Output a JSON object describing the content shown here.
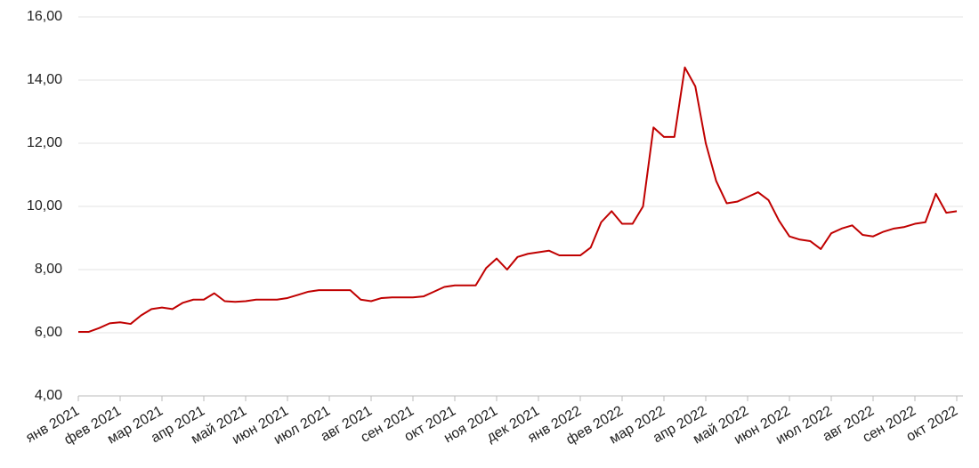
{
  "chart_data": {
    "type": "line",
    "categories": [
      "янв 2021",
      null,
      null,
      null,
      "фев 2021",
      null,
      null,
      null,
      "мар 2021",
      null,
      null,
      null,
      "апр 2021",
      null,
      null,
      null,
      "май 2021",
      null,
      null,
      null,
      "июн 2021",
      null,
      null,
      null,
      "июл 2021",
      null,
      null,
      null,
      "авг 2021",
      null,
      null,
      null,
      "сен 2021",
      null,
      null,
      null,
      "окт 2021",
      null,
      null,
      null,
      "ноя 2021",
      null,
      null,
      null,
      "дек 2021",
      null,
      null,
      null,
      "янв 2022",
      null,
      null,
      null,
      "фев 2022",
      null,
      null,
      null,
      "мар 2022",
      null,
      null,
      null,
      "апр 2022",
      null,
      null,
      null,
      "май 2022",
      null,
      null,
      null,
      "июн 2022",
      null,
      null,
      null,
      "июл 2022",
      null,
      null,
      null,
      "авг 2022",
      null,
      null,
      null,
      "сен 2022",
      null,
      null,
      null,
      "окт 2022"
    ],
    "values": [
      6.03,
      6.03,
      6.15,
      6.3,
      6.33,
      6.28,
      6.55,
      6.75,
      6.8,
      6.75,
      6.95,
      7.05,
      7.05,
      7.25,
      7.0,
      6.98,
      7.0,
      7.05,
      7.05,
      7.05,
      7.1,
      7.2,
      7.3,
      7.35,
      7.35,
      7.35,
      7.35,
      7.05,
      7.0,
      7.1,
      7.12,
      7.12,
      7.12,
      7.15,
      7.3,
      7.45,
      7.5,
      7.5,
      7.5,
      8.05,
      8.35,
      8.0,
      8.4,
      8.5,
      8.55,
      8.6,
      8.45,
      8.45,
      8.45,
      8.7,
      9.5,
      9.85,
      9.45,
      9.45,
      10.0,
      12.5,
      12.2,
      12.2,
      14.4,
      13.8,
      12.0,
      10.8,
      10.1,
      10.15,
      10.3,
      10.45,
      10.2,
      9.55,
      9.05,
      8.95,
      8.9,
      8.65,
      9.15,
      9.3,
      9.4,
      9.1,
      9.05,
      9.2,
      9.3,
      9.35,
      9.45,
      9.5,
      10.4,
      9.8,
      9.85
    ],
    "color": "#c00000",
    "ylim": [
      4,
      16
    ],
    "yticks": [
      {
        "value": 4,
        "label": "4,00"
      },
      {
        "value": 6,
        "label": "6,00"
      },
      {
        "value": 8,
        "label": "8,00"
      },
      {
        "value": 10,
        "label": "10,00"
      },
      {
        "value": 12,
        "label": "12,00"
      },
      {
        "value": 14,
        "label": "14,00"
      },
      {
        "value": 16,
        "label": "16,00"
      }
    ],
    "grid": true
  }
}
